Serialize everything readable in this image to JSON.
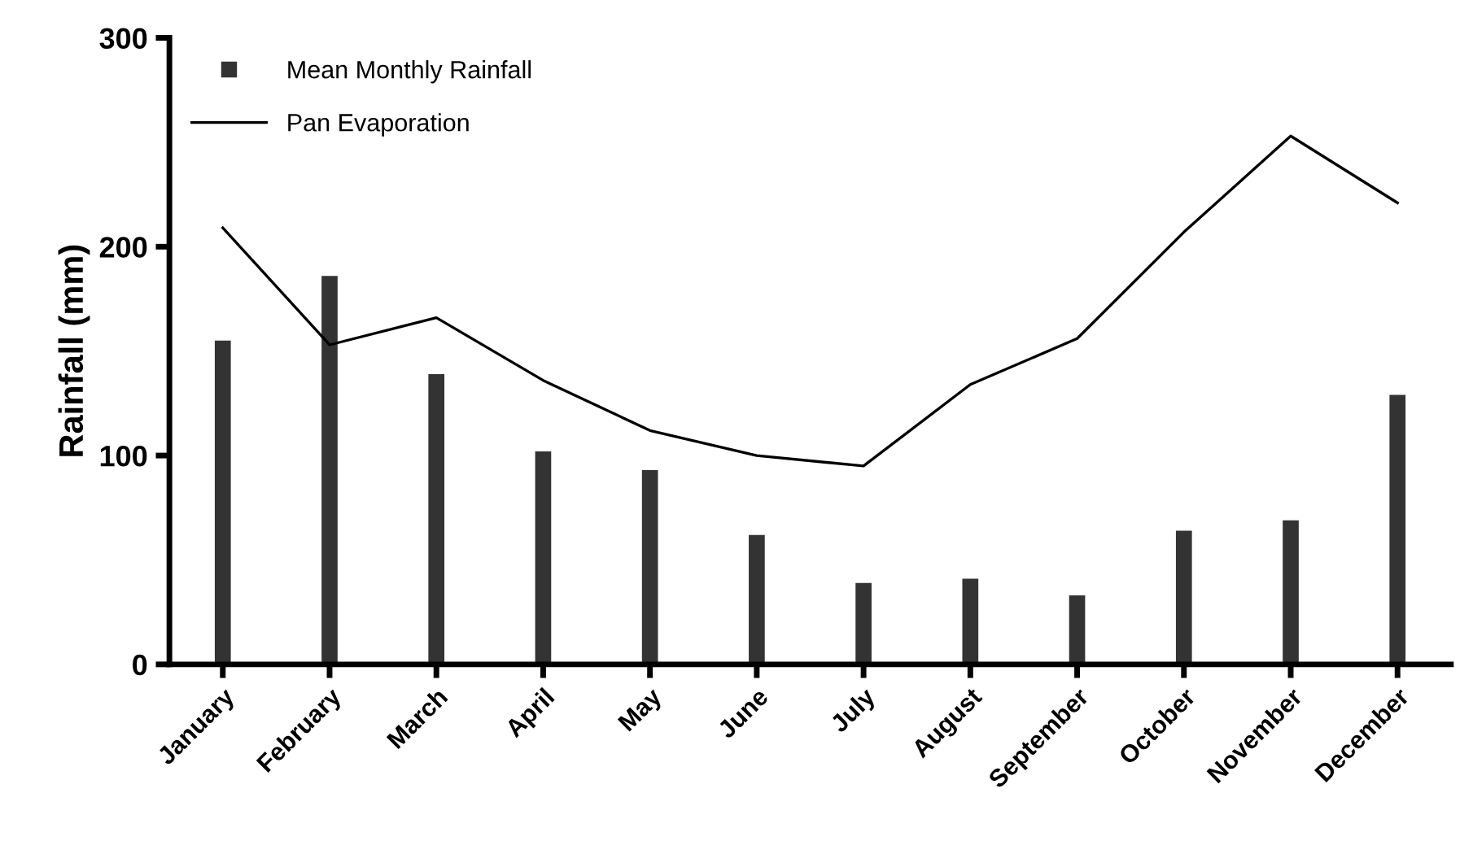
{
  "chart_data": {
    "type": "bar",
    "ylabel": "Rainfall (mm)",
    "categories": [
      "January",
      "February",
      "March",
      "April",
      "May",
      "June",
      "July",
      "August",
      "September",
      "October",
      "November",
      "December"
    ],
    "series": [
      {
        "name": "Mean Monthly Rainfall",
        "color": "#333333",
        "values": [
          155,
          186,
          139,
          102,
          93,
          62,
          39,
          41,
          33,
          64,
          69,
          129
        ]
      },
      {
        "name": "Pan Evaporation",
        "type": "line",
        "color": "#000000",
        "values": [
          209,
          153,
          166,
          136,
          112,
          100,
          95,
          134,
          156,
          207,
          253,
          221
        ]
      }
    ],
    "ylim": [
      0,
      300
    ],
    "yticks": [
      0,
      100,
      200,
      300
    ],
    "grid": false,
    "legend": "top left"
  }
}
